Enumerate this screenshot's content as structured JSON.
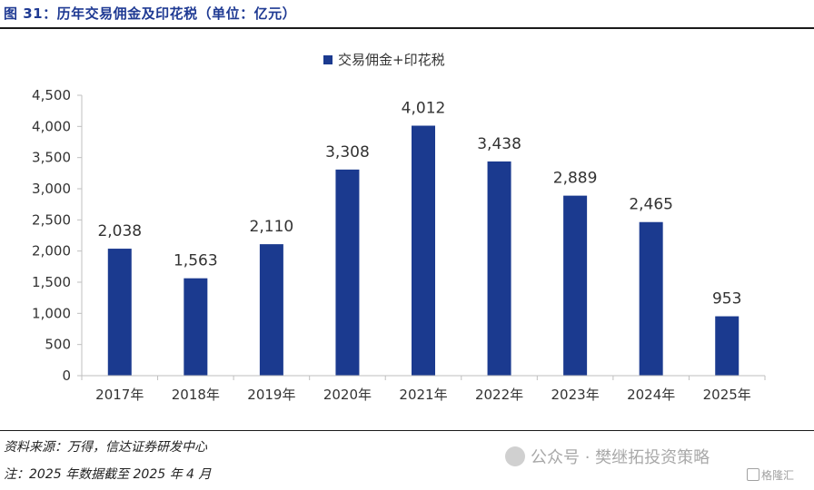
{
  "figure": {
    "title": "图 31：历年交易佣金及印花税（单位：亿元）",
    "source": "资料来源：万得，信达证券研发中心",
    "note": "注：2025 年数据截至 2025 年 4 月",
    "watermark": "公众号 · 樊继拓投资策略",
    "logo_text": "格隆汇"
  },
  "colors": {
    "bar": "#1b3a8f",
    "axis": "#bfbfbf",
    "title": "#1f3a93"
  },
  "chart_data": {
    "type": "bar",
    "title": "",
    "xlabel": "",
    "ylabel": "",
    "categories": [
      "2017年",
      "2018年",
      "2019年",
      "2020年",
      "2021年",
      "2022年",
      "2023年",
      "2024年",
      "2025年"
    ],
    "series": [
      {
        "name": "交易佣金+印花税",
        "values": [
          2038,
          1563,
          2110,
          3308,
          4012,
          3438,
          2889,
          2465,
          953
        ],
        "labels": [
          "2,038",
          "1,563",
          "2,110",
          "3,308",
          "4,012",
          "3,438",
          "2,889",
          "2,465",
          "953"
        ]
      }
    ],
    "ylim": [
      0,
      4500
    ],
    "yticks": [
      0,
      500,
      1000,
      1500,
      2000,
      2500,
      3000,
      3500,
      4000,
      4500
    ],
    "ytick_labels": [
      "0",
      "500",
      "1,000",
      "1,500",
      "2,000",
      "2,500",
      "3,000",
      "3,500",
      "4,000",
      "4,500"
    ],
    "grid": false,
    "legend_position": "top-center"
  }
}
